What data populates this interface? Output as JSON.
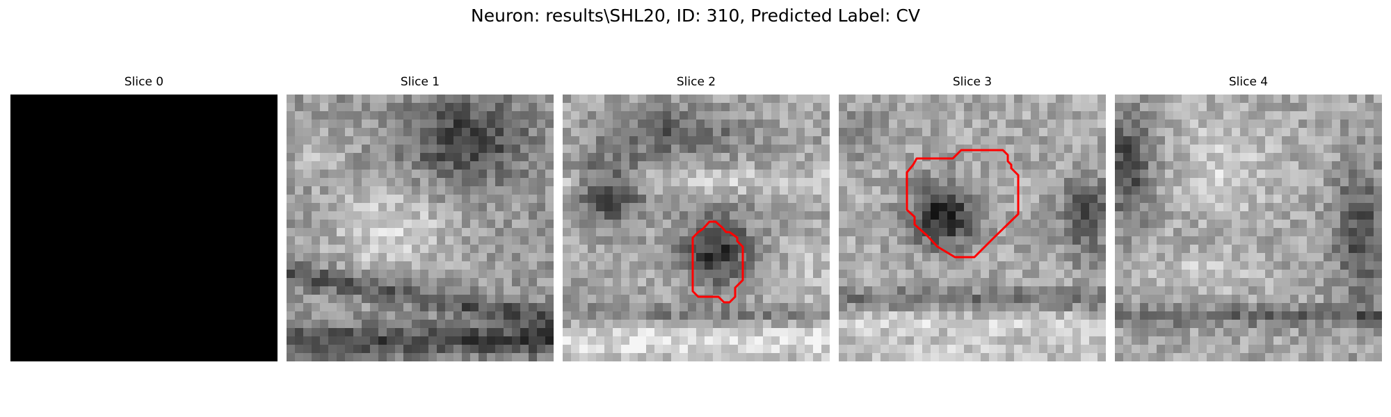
{
  "figure": {
    "title": "Neuron: results\\SHL20, ID: 310, Predicted Label: CV"
  },
  "panels": [
    {
      "title": "Slice 0",
      "image": "blank-black-slice",
      "has_contour": false
    },
    {
      "title": "Slice 1",
      "image": "grayscale-em-slice",
      "has_contour": false
    },
    {
      "title": "Slice 2",
      "image": "grayscale-em-slice",
      "has_contour": true,
      "contour_color": "#ff0000"
    },
    {
      "title": "Slice 3",
      "image": "grayscale-em-slice",
      "has_contour": true,
      "contour_color": "#ff0000"
    },
    {
      "title": "Slice 4",
      "image": "grayscale-em-slice",
      "has_contour": false
    }
  ]
}
